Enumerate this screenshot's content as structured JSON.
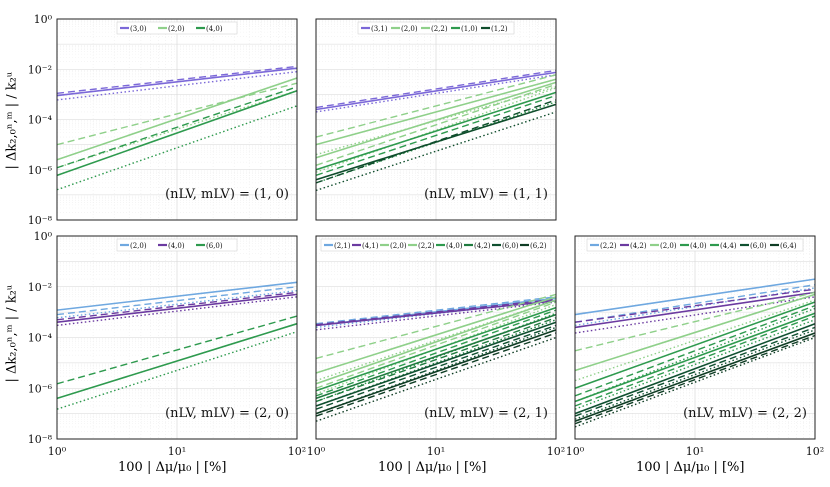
{
  "figure": {
    "y_axis_label": "| Δk₂,₀ⁿ,ᵐ | / k₂ᵘ",
    "x_axis_label": "100 | Δμ/μ₀ | [%]",
    "x_tick_labels": [
      "10⁰",
      "10¹",
      "10²"
    ],
    "y_tick_labels": [
      "10⁰",
      "10⁻²",
      "10⁻⁴",
      "10⁻⁶",
      "10⁻⁸"
    ],
    "colors": {
      "(3,0)": "#7b68d8",
      "(3,1)": "#7b68d8",
      "(2,0)": "#8fd08a",
      "(2,2)": "#8fd08a",
      "(4,0)": "#2e9a4e",
      "(1,0)": "#2e9a4e",
      "(1,2)": "#0f4d2c",
      "(2,1)": "#6fa8e0",
      "(4,1)": "#6b3aa0",
      "(4,2)": "#1f7a3e",
      "(6,0)": "#0f5030",
      "(6,2)": "#0f3d24",
      "(4,4)": "#2e9a4e",
      "(6,4)": "#0f3d24"
    }
  },
  "chart_data": [
    {
      "type": "line",
      "title": "(n_LV, m_LV) = (1, 0)",
      "annotation": "(nLV, mLV) = (1, 0)",
      "xscale": "log",
      "yscale": "log",
      "xlim": [
        1,
        100
      ],
      "ylim": [
        1e-08,
        1
      ],
      "xlabel": "",
      "ylabel": "| Δk₂,₀ⁿ,ᵐ | / k₂ᵘ",
      "legend_position": "top",
      "legend": [
        "(3,0)",
        "(2,0)",
        "(4,0)"
      ],
      "series": [
        {
          "name": "(3,0)",
          "color": "#7b68d8",
          "x": [
            1,
            100
          ],
          "solid": [
            0.0009,
            0.011
          ],
          "dashed": [
            0.0011,
            0.013
          ],
          "dotted": [
            0.0006,
            0.008
          ]
        },
        {
          "name": "(2,0)",
          "color": "#8fd08a",
          "x": [
            1,
            100
          ],
          "solid": [
            2.5e-06,
            0.0045
          ],
          "dashed": [
            1e-05,
            0.0028
          ],
          "dotted": [
            1.2e-06,
            0.0014
          ]
        },
        {
          "name": "(4,0)",
          "color": "#2e9a4e",
          "x": [
            1,
            100
          ],
          "solid": [
            6e-07,
            0.0014
          ],
          "dashed": [
            1.2e-06,
            0.002
          ],
          "dotted": [
            1.6e-07,
            0.00035
          ]
        }
      ]
    },
    {
      "type": "line",
      "title": "(n_LV, m_LV) = (1, 1)",
      "annotation": "(nLV, mLV) = (1, 1)",
      "xscale": "log",
      "yscale": "log",
      "xlim": [
        1,
        100
      ],
      "ylim": [
        1e-08,
        1
      ],
      "xlabel": "",
      "ylabel": "",
      "legend_position": "top",
      "legend": [
        "(3,1)",
        "(2,0)",
        "(2,2)",
        "(1,0)",
        "(1,2)"
      ],
      "series": [
        {
          "name": "(3,1)",
          "color": "#7b68d8",
          "x": [
            1,
            100
          ],
          "solid": [
            0.00025,
            0.0075
          ],
          "dashed": [
            0.0003,
            0.009
          ],
          "dotted": [
            0.0002,
            0.006
          ]
        },
        {
          "name": "(2,0)",
          "color": "#8fd08a",
          "x": [
            1,
            100
          ],
          "solid": [
            1e-05,
            0.004
          ],
          "dashed": [
            2e-05,
            0.006
          ],
          "dotted": [
            4e-06,
            0.002
          ]
        },
        {
          "name": "(2,2)",
          "color": "#8fd08a",
          "x": [
            1,
            100
          ],
          "solid": [
            3e-06,
            0.003
          ],
          "dashed": [
            1.5e-06,
            0.0025
          ],
          "dotted": [
            8e-07,
            0.0018
          ]
        },
        {
          "name": "(1,0)",
          "color": "#2e9a4e",
          "x": [
            1,
            100
          ],
          "solid": [
            1e-06,
            0.0012
          ],
          "dashed": [
            6e-07,
            0.0009
          ],
          "dotted": [
            3e-07,
            0.0005
          ]
        },
        {
          "name": "(1,2)",
          "color": "#0f4d2c",
          "x": [
            1,
            100
          ],
          "solid": [
            4e-07,
            0.0004
          ],
          "dashed": [
            3e-07,
            0.0006
          ],
          "dotted": [
            1.5e-07,
            0.0002
          ]
        }
      ]
    },
    {
      "type": "line",
      "title": "(n_LV, m_LV) = (2, 0)",
      "annotation": "(nLV, mLV) = (2, 0)",
      "xscale": "log",
      "yscale": "log",
      "xlim": [
        1,
        100
      ],
      "ylim": [
        1e-08,
        1
      ],
      "xlabel": "100 | Δμ/μ₀ | [%]",
      "ylabel": "| Δk₂,₀ⁿ,ᵐ | / k₂ᵘ",
      "legend_position": "top",
      "legend": [
        "(2,0)",
        "(4,0)",
        "(6,0)"
      ],
      "series": [
        {
          "name": "(2,0)",
          "color": "#6fa8e0",
          "x": [
            1,
            100
          ],
          "solid": [
            0.0012,
            0.015
          ],
          "dashed": [
            0.0008,
            0.01
          ],
          "dotted": [
            0.0006,
            0.007
          ]
        },
        {
          "name": "(4,0)",
          "color": "#6b3aa0",
          "x": [
            1,
            100
          ],
          "solid": [
            0.0004,
            0.005
          ],
          "dashed": [
            0.0005,
            0.006
          ],
          "dotted": [
            0.0003,
            0.004
          ]
        },
        {
          "name": "(6,0)",
          "color": "#2e9a4e",
          "x": [
            1,
            100
          ],
          "solid": [
            4e-07,
            0.00035
          ],
          "dashed": [
            1.5e-06,
            0.0007
          ],
          "dotted": [
            1.5e-07,
            0.00017
          ]
        }
      ]
    },
    {
      "type": "line",
      "title": "(n_LV, m_LV) = (2, 1)",
      "annotation": "(nLV, mLV) = (2, 1)",
      "xscale": "log",
      "yscale": "log",
      "xlim": [
        1,
        100
      ],
      "ylim": [
        1e-08,
        1
      ],
      "xlabel": "100 | Δμ/μ₀ | [%]",
      "ylabel": "",
      "legend_position": "top",
      "legend": [
        "(2,1)",
        "(4,1)",
        "(2,0)",
        "(2,2)",
        "(4,0)",
        "(4,2)",
        "(6,0)",
        "(6,2)"
      ],
      "series": [
        {
          "name": "(2,1)",
          "color": "#6fa8e0",
          "x": [
            1,
            100
          ],
          "solid": [
            0.0003,
            0.0035
          ],
          "dashed": [
            0.00035,
            0.004
          ],
          "dotted": [
            0.00025,
            0.003
          ]
        },
        {
          "name": "(4,1)",
          "color": "#6b3aa0",
          "x": [
            1,
            100
          ],
          "solid": [
            0.0003,
            0.0028
          ],
          "dashed": [
            0.00032,
            0.0032
          ],
          "dotted": [
            0.0002,
            0.0025
          ]
        },
        {
          "name": "(2,0)",
          "color": "#8fd08a",
          "x": [
            1,
            100
          ],
          "solid": [
            4e-06,
            0.004
          ],
          "dashed": [
            1.5e-05,
            0.005
          ],
          "dotted": [
            2e-06,
            0.003
          ]
        },
        {
          "name": "(2,2)",
          "color": "#8fd08a",
          "x": [
            1,
            100
          ],
          "solid": [
            1.5e-06,
            0.003
          ],
          "dashed": [
            1e-06,
            0.0025
          ],
          "dotted": [
            6e-07,
            0.002
          ]
        },
        {
          "name": "(4,0)",
          "color": "#2e9a4e",
          "x": [
            1,
            100
          ],
          "solid": [
            8e-07,
            0.0015
          ],
          "dashed": [
            5e-07,
            0.0012
          ],
          "dotted": [
            3e-07,
            0.0009
          ]
        },
        {
          "name": "(4,2)",
          "color": "#1f7a3e",
          "x": [
            1,
            100
          ],
          "solid": [
            4e-07,
            0.0008
          ],
          "dashed": [
            3e-07,
            0.0006
          ],
          "dotted": [
            2e-07,
            0.0005
          ]
        },
        {
          "name": "(6,0)",
          "color": "#0f5030",
          "x": [
            1,
            100
          ],
          "solid": [
            2e-07,
            0.0004
          ],
          "dashed": [
            1.5e-07,
            0.0003
          ],
          "dotted": [
            1e-07,
            0.00025
          ]
        },
        {
          "name": "(6,2)",
          "color": "#0f3d24",
          "x": [
            1,
            100
          ],
          "solid": [
            1e-07,
            0.0002
          ],
          "dashed": [
            8e-08,
            0.00015
          ],
          "dotted": [
            5e-08,
            0.0001
          ]
        }
      ]
    },
    {
      "type": "line",
      "title": "(n_LV, m_LV) = (2, 2)",
      "annotation": "(nLV, mLV) = (2, 2)",
      "xscale": "log",
      "yscale": "log",
      "xlim": [
        1,
        100
      ],
      "ylim": [
        1e-08,
        1
      ],
      "xlabel": "100 | Δμ/μ₀ | [%]",
      "ylabel": "",
      "legend_position": "top",
      "legend": [
        "(2,2)",
        "(4,2)",
        "(2,0)",
        "(4,0)",
        "(4,4)",
        "(6,0)",
        "(6,4)"
      ],
      "series": [
        {
          "name": "(2,2)",
          "color": "#6fa8e0",
          "x": [
            1,
            100
          ],
          "solid": [
            0.0008,
            0.02
          ],
          "dashed": [
            0.0004,
            0.012
          ],
          "dotted": [
            0.0003,
            0.009
          ]
        },
        {
          "name": "(4,2)",
          "color": "#6b3aa0",
          "x": [
            1,
            100
          ],
          "solid": [
            0.00025,
            0.006
          ],
          "dashed": [
            0.0004,
            0.008
          ],
          "dotted": [
            0.00015,
            0.004
          ]
        },
        {
          "name": "(2,0)",
          "color": "#8fd08a",
          "x": [
            1,
            100
          ],
          "solid": [
            5e-06,
            0.005
          ],
          "dashed": [
            3e-05,
            0.006
          ],
          "dotted": [
            2e-06,
            0.003
          ]
        },
        {
          "name": "(4,0)",
          "color": "#2e9a4e",
          "x": [
            1,
            100
          ],
          "solid": [
            1e-06,
            0.0025
          ],
          "dashed": [
            5e-07,
            0.0018
          ],
          "dotted": [
            3e-07,
            0.0014
          ]
        },
        {
          "name": "(4,4)",
          "color": "#2e9a4e",
          "x": [
            1,
            100
          ],
          "solid": [
            3e-07,
            0.0009
          ],
          "dashed": [
            2e-07,
            0.0007
          ],
          "dotted": [
            1.5e-07,
            0.0005
          ]
        },
        {
          "name": "(6,0)",
          "color": "#0f5030",
          "x": [
            1,
            100
          ],
          "solid": [
            1e-07,
            0.00035
          ],
          "dashed": [
            8e-08,
            0.00025
          ],
          "dotted": [
            6e-08,
            0.0002
          ]
        },
        {
          "name": "(6,4)",
          "color": "#0f3d24",
          "x": [
            1,
            100
          ],
          "solid": [
            5e-08,
            0.00015
          ],
          "dashed": [
            4e-08,
            0.00012
          ],
          "dotted": [
            3e-08,
            0.0001
          ]
        }
      ]
    }
  ]
}
